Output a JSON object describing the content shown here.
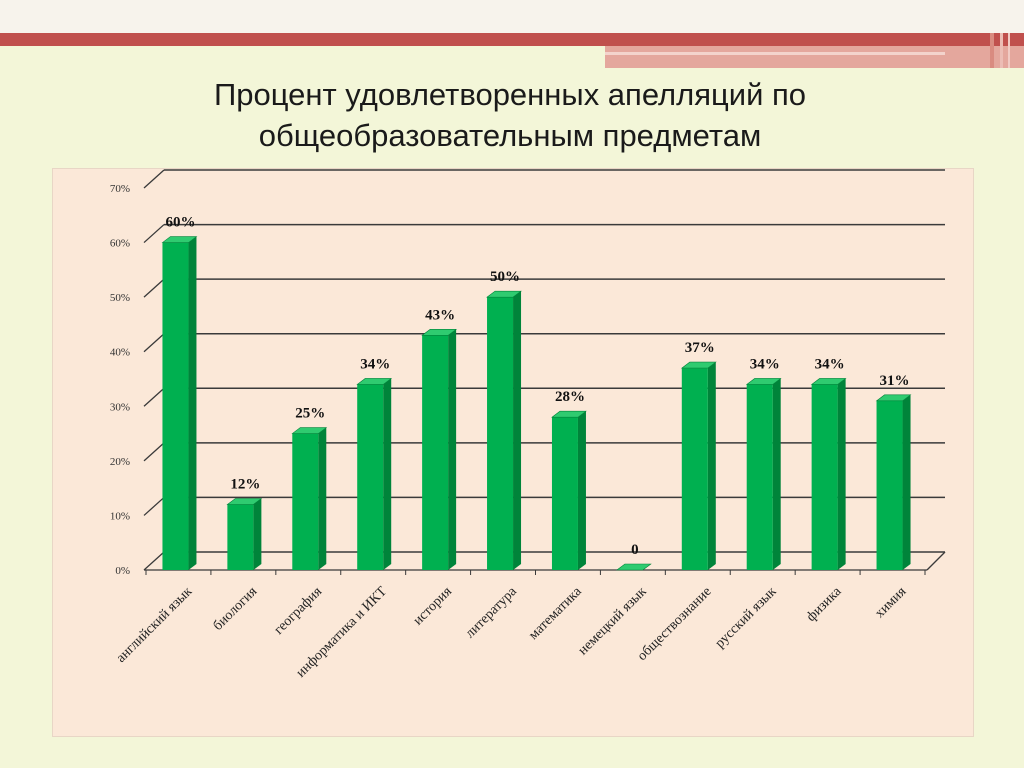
{
  "title": {
    "line1": "Процент удовлетворенных апелляций по",
    "line2": "общеобразовательным предметам"
  },
  "colors": {
    "background": "#f3f6d8",
    "panel": "#fbe8d8",
    "bar_front": "#00b050",
    "bar_side": "#00843a",
    "bar_top": "#2fcb70",
    "accent_band": "#c0504d"
  },
  "chart_data": {
    "type": "bar",
    "title": "",
    "xlabel": "",
    "ylabel": "",
    "ylim": [
      0,
      70
    ],
    "grid": true,
    "categories": [
      "английский язык",
      "биология",
      "география",
      "информатика и ИКТ",
      "история",
      "литература",
      "математика",
      "немецкий язык",
      "обществознание",
      "русский язык",
      "физика",
      "химия"
    ],
    "values": [
      60,
      12,
      25,
      34,
      43,
      50,
      28,
      0,
      37,
      34,
      34,
      31
    ],
    "data_labels": [
      "60%",
      "12%",
      "25%",
      "34%",
      "43%",
      "50%",
      "28%",
      "0",
      "37%",
      "34%",
      "34%",
      "31%"
    ],
    "y_ticks": [
      "0%",
      "10%",
      "20%",
      "30%",
      "40%",
      "50%",
      "60%",
      "70%"
    ]
  }
}
